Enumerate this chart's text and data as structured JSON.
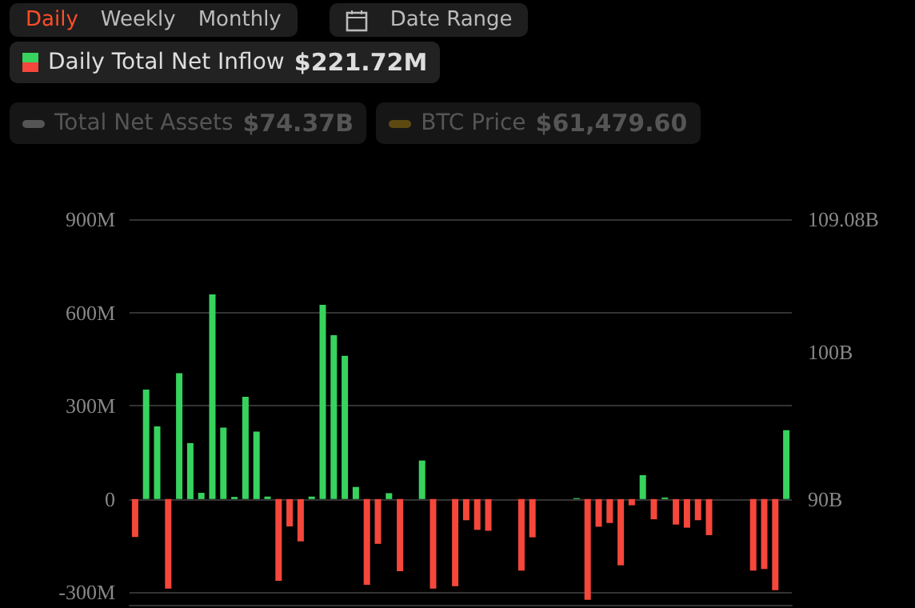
{
  "chart_data": {
    "type": "bar",
    "categories": [
      null,
      null,
      null,
      null,
      null,
      null,
      null,
      null,
      null,
      null,
      null,
      null,
      null,
      null,
      null,
      null,
      null,
      null,
      null,
      null,
      null,
      null,
      null,
      null,
      null,
      null,
      null,
      null,
      null,
      null,
      null,
      null,
      null,
      null,
      null,
      null,
      null,
      null,
      null,
      null,
      null,
      null,
      null,
      null,
      null,
      null,
      null,
      null,
      null,
      null,
      null,
      null,
      null,
      null,
      null,
      null,
      null,
      null,
      null,
      null
    ],
    "series": [
      {
        "name": "Daily Total Net Inflow",
        "values": [
          -122,
          352,
          234,
          -288,
          405,
          180,
          20,
          658,
          230,
          7,
          329,
          217,
          8,
          -263,
          -88,
          -136,
          8,
          625,
          527,
          461,
          39,
          -276,
          -144,
          19,
          -232,
          null,
          124,
          -288,
          null,
          -280,
          -68,
          -99,
          -102,
          null,
          null,
          -230,
          -123,
          null,
          null,
          null,
          3,
          -324,
          -89,
          -77,
          -213,
          -20,
          77,
          -65,
          5,
          -82,
          -92,
          -68,
          -116,
          null,
          null,
          null,
          -230,
          -225,
          -293,
          221.72
        ],
        "colors": [
          "#f5473b",
          "#37d35e",
          "#37d35e",
          "#f5473b",
          "#37d35e",
          "#37d35e",
          "#37d35e",
          "#37d35e",
          "#37d35e",
          "#37d35e",
          "#37d35e",
          "#37d35e",
          "#37d35e",
          "#f5473b",
          "#f5473b",
          "#f5473b",
          "#37d35e",
          "#37d35e",
          "#37d35e",
          "#37d35e",
          "#37d35e",
          "#f5473b",
          "#f5473b",
          "#37d35e",
          "#f5473b",
          "#f5473b",
          "#37d35e",
          "#f5473b",
          "#f5473b",
          "#f5473b",
          "#f5473b",
          "#f5473b",
          "#f5473b",
          "#f5473b",
          "#f5473b",
          "#f5473b",
          "#f5473b",
          "#f5473b",
          "#f5473b",
          "#f5473b",
          "#37d35e",
          "#f5473b",
          "#f5473b",
          "#f5473b",
          "#f5473b",
          "#f5473b",
          "#37d35e",
          "#f5473b",
          "#37d35e",
          "#f5473b",
          "#f5473b",
          "#f5473b",
          "#f5473b",
          "#f5473b",
          "#f5473b",
          "#f5473b",
          "#f5473b",
          "#f5473b",
          "#f5473b",
          "#37d35e"
        ]
      },
      {
        "name": "Total Net Assets",
        "type": "line",
        "color": "#555555",
        "values": [
          null,
          null,
          null,
          null,
          null,
          null,
          null,
          null,
          null,
          null,
          null,
          null,
          null,
          null,
          null,
          null,
          null,
          null,
          null,
          null,
          null,
          null,
          null,
          null,
          null,
          null,
          null,
          null,
          null,
          null,
          null,
          null,
          null,
          null,
          null,
          null,
          null,
          null,
          null,
          null,
          null,
          null,
          null,
          null,
          null,
          null,
          null,
          null,
          null,
          null,
          null,
          null,
          null,
          null,
          null,
          null,
          null,
          null,
          null,
          null
        ]
      },
      {
        "name": "BTC Price",
        "type": "line",
        "color": "#5c4a12",
        "values": [
          null,
          null,
          null,
          null,
          null,
          null,
          null,
          null,
          null,
          null,
          null,
          null,
          null,
          null,
          null,
          null,
          null,
          null,
          null,
          null,
          null,
          null,
          null,
          null,
          null,
          null,
          null,
          null,
          null,
          null,
          null,
          null,
          null,
          null,
          null,
          null,
          null,
          null,
          null,
          null,
          null,
          null,
          null,
          null,
          null,
          null,
          null,
          null,
          null,
          null,
          null,
          null,
          null,
          null,
          null,
          null,
          null,
          null,
          null,
          null
        ]
      }
    ],
    "ylim": [
      -340,
      900
    ],
    "yticks": [
      {
        "value": -300,
        "label": "-300M"
      },
      {
        "value": 0,
        "label": "0"
      },
      {
        "value": 300,
        "label": "300M"
      },
      {
        "value": 600,
        "label": "600M"
      },
      {
        "value": 900,
        "label": "900M"
      }
    ],
    "y2lim": [
      82.79,
      109.08
    ],
    "y2ticks": [
      {
        "value": 90,
        "label": "90B"
      },
      {
        "value": 100,
        "label": "100B"
      },
      {
        "value": 109.08,
        "label": "109.08B"
      }
    ],
    "grid": "y",
    "legend": "top left",
    "annotations": [
      "Daily",
      "Weekly",
      "Monthly",
      "Date Range",
      "$221.72M",
      "$74.37B",
      "$61,479.60"
    ]
  }
}
